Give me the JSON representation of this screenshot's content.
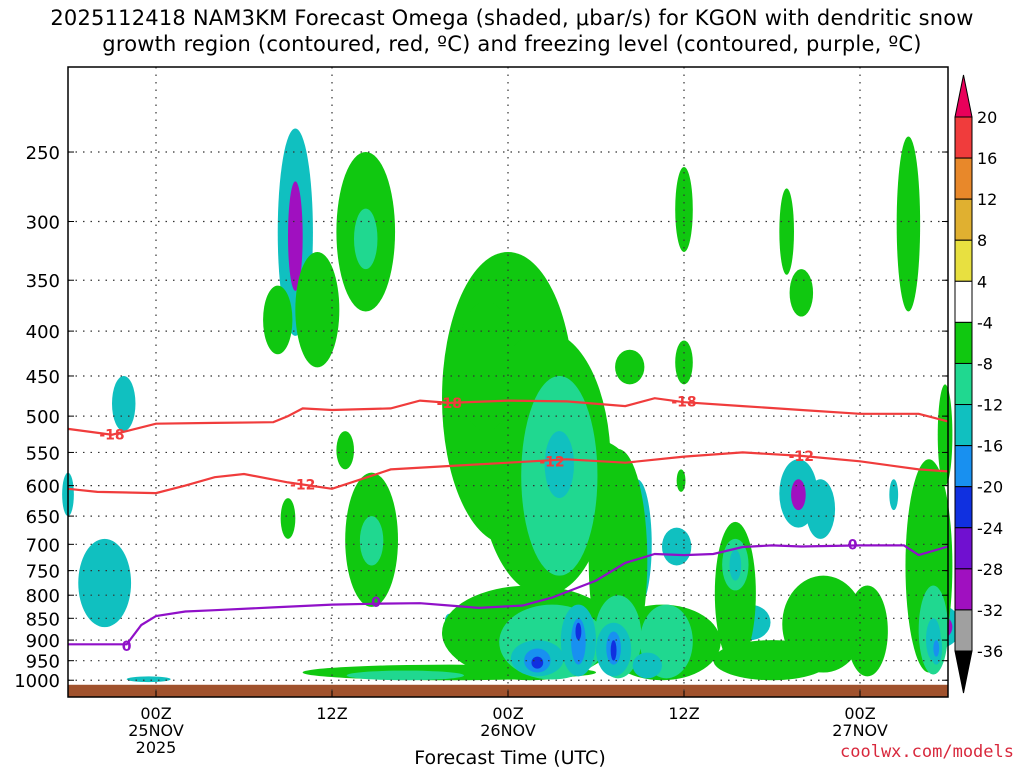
{
  "title_line1": "2025112418 NAM3KM Forecast Omega (shaded, μbar/s) for KGON with dendritic snow",
  "title_line2": "growth region (contoured, red, ºC) and freezing level (contoured, purple, ºC)",
  "credit": "coolwx.com/models",
  "chart_data": {
    "type": "heatmap",
    "xlabel": "Forecast Time (UTC)",
    "x_range_hours": [
      0,
      60
    ],
    "y_scale": "pressure (mb), inverted",
    "y_ticks": [
      250,
      300,
      350,
      400,
      450,
      500,
      550,
      600,
      650,
      700,
      750,
      800,
      850,
      900,
      950,
      1000
    ],
    "x_ticks": [
      {
        "hour": 6,
        "lines": [
          "00Z",
          "25NOV",
          "2025"
        ]
      },
      {
        "hour": 18,
        "lines": [
          "12Z"
        ]
      },
      {
        "hour": 30,
        "lines": [
          "00Z",
          "26NOV"
        ]
      },
      {
        "hour": 42,
        "lines": [
          "12Z"
        ]
      },
      {
        "hour": 54,
        "lines": [
          "00Z",
          "27NOV"
        ]
      }
    ],
    "colorbar": {
      "labels": [
        "20",
        "16",
        "12",
        "8",
        "4",
        "-4",
        "-8",
        "-12",
        "-16",
        "-20",
        "-24",
        "-28",
        "-32",
        "-36"
      ],
      "colors": [
        "#e8005a",
        "#f03c3c",
        "#e8882a",
        "#e0b030",
        "#e8e040",
        "#ffffff",
        "#10c810",
        "#20d890",
        "#10c0c0",
        "#1890f0",
        "#1030e0",
        "#7010d0",
        "#a010c0",
        "#a0a0a0",
        "#000000"
      ]
    },
    "contours": {
      "dendritic_red": [
        {
          "label": "-18",
          "points": [
            [
              0,
              517
            ],
            [
              3,
              525
            ],
            [
              6,
              510
            ],
            [
              10,
              509
            ],
            [
              14,
              508
            ],
            [
              15,
              500
            ],
            [
              16,
              490
            ],
            [
              18,
              492
            ],
            [
              22,
              490
            ],
            [
              24,
              480
            ],
            [
              26,
              483
            ],
            [
              30,
              480
            ],
            [
              34,
              481
            ],
            [
              38,
              487
            ],
            [
              40,
              477
            ],
            [
              42,
              482
            ],
            [
              46,
              487
            ],
            [
              50,
              492
            ],
            [
              54,
              497
            ],
            [
              58,
              497
            ],
            [
              60,
              507
            ]
          ]
        },
        {
          "label": "-12",
          "points": [
            [
              0,
              605
            ],
            [
              2,
              610
            ],
            [
              6,
              612
            ],
            [
              8,
              600
            ],
            [
              10,
              587
            ],
            [
              12,
              582
            ],
            [
              15,
              595
            ],
            [
              18,
              605
            ],
            [
              20,
              590
            ],
            [
              22,
              575
            ],
            [
              26,
              570
            ],
            [
              30,
              565
            ],
            [
              34,
              560
            ],
            [
              38,
              565
            ],
            [
              42,
              556
            ],
            [
              46,
              550
            ],
            [
              50,
              555
            ],
            [
              54,
              563
            ],
            [
              58,
              575
            ],
            [
              60,
              578
            ]
          ]
        }
      ],
      "freezing_purple": [
        {
          "label": "0",
          "points": [
            [
              0,
              910
            ],
            [
              4,
              910
            ],
            [
              5,
              865
            ],
            [
              6,
              845
            ],
            [
              8,
              835
            ],
            [
              10,
              832
            ],
            [
              14,
              826
            ],
            [
              18,
              820
            ],
            [
              21,
              818
            ],
            [
              24,
              817
            ],
            [
              26,
              822
            ],
            [
              28,
              827
            ],
            [
              31,
              822
            ],
            [
              33,
              805
            ],
            [
              36,
              770
            ],
            [
              38,
              735
            ],
            [
              40,
              718
            ],
            [
              42,
              720
            ],
            [
              44,
              718
            ],
            [
              46,
              705
            ],
            [
              48,
              702
            ],
            [
              50,
              704
            ],
            [
              54,
              702
            ],
            [
              57,
              702
            ],
            [
              58,
              720
            ],
            [
              60,
              704
            ]
          ]
        }
      ]
    },
    "contour_labels": [
      {
        "text": "-18",
        "hour": 3,
        "mb": 525,
        "series": "dendritic_red"
      },
      {
        "text": "-18",
        "hour": 26,
        "mb": 483,
        "series": "dendritic_red"
      },
      {
        "text": "-18",
        "hour": 42,
        "mb": 481,
        "series": "dendritic_red"
      },
      {
        "text": "-12",
        "hour": 16,
        "mb": 598,
        "series": "dendritic_red"
      },
      {
        "text": "-12",
        "hour": 33,
        "mb": 563,
        "series": "dendritic_red"
      },
      {
        "text": "-12",
        "hour": 50,
        "mb": 555,
        "series": "dendritic_red"
      },
      {
        "text": "0",
        "hour": 4,
        "mb": 914,
        "series": "freezing_purple"
      },
      {
        "text": "0",
        "hour": 21,
        "mb": 814,
        "series": "freezing_purple"
      },
      {
        "text": "0",
        "hour": 53.5,
        "mb": 700,
        "series": "freezing_purple"
      }
    ],
    "omega_regions": [
      {
        "c": 8,
        "hour": 15.5,
        "mb_top": 235,
        "mb_bot": 405,
        "w": 1.2
      },
      {
        "c": 12,
        "hour": 15.5,
        "mb_top": 270,
        "mb_bot": 360,
        "w": 0.5
      },
      {
        "c": 8,
        "hour": 3.8,
        "mb_top": 450,
        "mb_bot": 520,
        "w": 0.8
      },
      {
        "c": 8,
        "hour": 2.5,
        "mb_top": 690,
        "mb_bot": 870,
        "w": 1.8
      },
      {
        "c": 8,
        "hour": 5.5,
        "mb_top": 990,
        "mb_bot": 1005,
        "w": 1.5
      },
      {
        "c": 8,
        "hour": 0,
        "mb_top": 580,
        "mb_bot": 650,
        "w": 0.4
      },
      {
        "c": 8,
        "hour": 19,
        "mb_top": 275,
        "mb_bot": 305,
        "w": 0.3
      },
      {
        "c": 8,
        "hour": 38.8,
        "mb_top": 590,
        "mb_bot": 830,
        "w": 1.0
      },
      {
        "c": 8,
        "hour": 41.5,
        "mb_top": 670,
        "mb_bot": 740,
        "w": 1.0
      },
      {
        "c": 8,
        "hour": 46.5,
        "mb_top": 820,
        "mb_bot": 900,
        "w": 1.4
      },
      {
        "c": 8,
        "hour": 49.8,
        "mb_top": 560,
        "mb_bot": 670,
        "w": 1.3
      },
      {
        "c": 12,
        "hour": 49.8,
        "mb_top": 590,
        "mb_bot": 640,
        "w": 0.5
      },
      {
        "c": 8,
        "hour": 51.3,
        "mb_top": 590,
        "mb_bot": 690,
        "w": 1.0
      },
      {
        "c": 8,
        "hour": 26,
        "mb_top": 840,
        "mb_bot": 870,
        "w": 0.3
      },
      {
        "c": 8,
        "hour": 56.3,
        "mb_top": 590,
        "mb_bot": 640,
        "w": 0.3
      },
      {
        "c": 8,
        "hour": 59.3,
        "mb_top": 820,
        "mb_bot": 920,
        "w": 1.6
      },
      {
        "c": 12,
        "hour": 59.3,
        "mb_top": 840,
        "mb_bot": 900,
        "w": 1.0
      },
      {
        "c": 8,
        "hour": 53.5,
        "mb_top": 870,
        "mb_bot": 920,
        "w": 0.3
      },
      {
        "c": 6,
        "hour": 14.3,
        "mb_top": 355,
        "mb_bot": 425,
        "w": 1.0
      },
      {
        "c": 6,
        "hour": 17,
        "mb_top": 325,
        "mb_bot": 440,
        "w": 1.5
      },
      {
        "c": 6,
        "hour": 20.3,
        "mb_top": 250,
        "mb_bot": 380,
        "w": 2.0
      },
      {
        "c": 7,
        "hour": 20.3,
        "mb_top": 290,
        "mb_bot": 340,
        "w": 0.8
      },
      {
        "c": 6,
        "hour": 15,
        "mb_top": 620,
        "mb_bot": 690,
        "w": 0.5
      },
      {
        "c": 6,
        "hour": 18.9,
        "mb_top": 520,
        "mb_bot": 575,
        "w": 0.6
      },
      {
        "c": 6,
        "hour": 20.7,
        "mb_top": 580,
        "mb_bot": 825,
        "w": 1.8
      },
      {
        "c": 7,
        "hour": 20.7,
        "mb_top": 650,
        "mb_bot": 740,
        "w": 0.8
      },
      {
        "c": 6,
        "hour": 30,
        "mb_top": 325,
        "mb_bot": 700,
        "w": 4.5
      },
      {
        "c": 6,
        "hour": 32.5,
        "mb_top": 400,
        "mb_bot": 800,
        "w": 4.5
      },
      {
        "c": 6,
        "hour": 35.5,
        "mb_top": 530,
        "mb_bot": 650,
        "w": 3.0
      },
      {
        "c": 6,
        "hour": 28.5,
        "mb_top": 370,
        "mb_bot": 520,
        "w": 2.0
      },
      {
        "c": 6,
        "hour": 37.5,
        "mb_top": 545,
        "mb_bot": 980,
        "w": 2.0
      },
      {
        "c": 7,
        "hour": 33.5,
        "mb_top": 450,
        "mb_bot": 760,
        "w": 2.6
      },
      {
        "c": 8,
        "hour": 33.5,
        "mb_top": 520,
        "mb_bot": 620,
        "w": 1.0
      },
      {
        "c": 6,
        "hour": 42,
        "mb_top": 260,
        "mb_bot": 325,
        "w": 0.6
      },
      {
        "c": 6,
        "hour": 42,
        "mb_top": 410,
        "mb_bot": 460,
        "w": 0.6
      },
      {
        "c": 6,
        "hour": 41.8,
        "mb_top": 575,
        "mb_bot": 610,
        "w": 0.3
      },
      {
        "c": 6,
        "hour": 38.3,
        "mb_top": 420,
        "mb_bot": 460,
        "w": 1.0
      },
      {
        "c": 6,
        "hour": 49,
        "mb_top": 275,
        "mb_bot": 345,
        "w": 0.5
      },
      {
        "c": 6,
        "hour": 50,
        "mb_top": 340,
        "mb_bot": 385,
        "w": 0.8
      },
      {
        "c": 6,
        "hour": 57.3,
        "mb_top": 240,
        "mb_bot": 380,
        "w": 0.8
      },
      {
        "c": 6,
        "hour": 58.7,
        "mb_top": 560,
        "mb_bot": 980,
        "w": 1.6
      },
      {
        "c": 6,
        "hour": 59.8,
        "mb_top": 460,
        "mb_bot": 600,
        "w": 0.5
      },
      {
        "c": 6,
        "hour": 45.5,
        "mb_top": 660,
        "mb_bot": 960,
        "w": 1.4
      },
      {
        "c": 6,
        "hour": 51.5,
        "mb_top": 760,
        "mb_bot": 980,
        "w": 2.8
      },
      {
        "c": 6,
        "hour": 54.5,
        "mb_top": 780,
        "mb_bot": 990,
        "w": 1.4
      },
      {
        "c": 6,
        "hour": 31.5,
        "mb_top": 780,
        "mb_bot": 1000,
        "w": 6.0
      },
      {
        "c": 6,
        "hour": 40.5,
        "mb_top": 820,
        "mb_bot": 1000,
        "w": 4.0
      },
      {
        "c": 6,
        "hour": 48,
        "mb_top": 900,
        "mb_bot": 1000,
        "w": 4.0
      },
      {
        "c": 6,
        "hour": 26,
        "mb_top": 960,
        "mb_bot": 1000,
        "w": 10.0
      },
      {
        "c": 7,
        "hour": 33,
        "mb_top": 820,
        "mb_bot": 998,
        "w": 3.6
      },
      {
        "c": 7,
        "hour": 37.5,
        "mb_top": 800,
        "mb_bot": 995,
        "w": 1.6
      },
      {
        "c": 7,
        "hour": 40.8,
        "mb_top": 820,
        "mb_bot": 995,
        "w": 1.8
      },
      {
        "c": 7,
        "hour": 45.5,
        "mb_top": 690,
        "mb_bot": 790,
        "w": 0.9
      },
      {
        "c": 8,
        "hour": 45.5,
        "mb_top": 710,
        "mb_bot": 770,
        "w": 0.4
      },
      {
        "c": 7,
        "hour": 59,
        "mb_top": 780,
        "mb_bot": 985,
        "w": 1.0
      },
      {
        "c": 8,
        "hour": 59,
        "mb_top": 850,
        "mb_bot": 950,
        "w": 0.5
      },
      {
        "c": 8,
        "hour": 32,
        "mb_top": 900,
        "mb_bot": 990,
        "w": 1.8
      },
      {
        "c": 9,
        "hour": 32,
        "mb_top": 920,
        "mb_bot": 980,
        "w": 0.9
      },
      {
        "c": 10,
        "hour": 32,
        "mb_top": 940,
        "mb_bot": 970,
        "w": 0.4
      },
      {
        "c": 8,
        "hour": 34.8,
        "mb_top": 820,
        "mb_bot": 990,
        "w": 1.2
      },
      {
        "c": 9,
        "hour": 34.8,
        "mb_top": 850,
        "mb_bot": 960,
        "w": 0.5
      },
      {
        "c": 10,
        "hour": 34.8,
        "mb_top": 860,
        "mb_bot": 900,
        "w": 0.2
      },
      {
        "c": 8,
        "hour": 37.2,
        "mb_top": 860,
        "mb_bot": 990,
        "w": 1.2
      },
      {
        "c": 9,
        "hour": 37.2,
        "mb_top": 880,
        "mb_bot": 960,
        "w": 0.5
      },
      {
        "c": 10,
        "hour": 37.2,
        "mb_top": 900,
        "mb_bot": 950,
        "w": 0.2
      },
      {
        "c": 8,
        "hour": 39.5,
        "mb_top": 930,
        "mb_bot": 995,
        "w": 1.0
      },
      {
        "c": 8,
        "hour": 59.2,
        "mb_top": 880,
        "mb_bot": 960,
        "w": 0.4
      },
      {
        "c": 9,
        "hour": 59.2,
        "mb_top": 900,
        "mb_bot": 940,
        "w": 0.2
      },
      {
        "c": 7,
        "hour": 23,
        "mb_top": 975,
        "mb_bot": 1000,
        "w": 4.0
      }
    ],
    "terrain_surface_mb": 1012
  }
}
